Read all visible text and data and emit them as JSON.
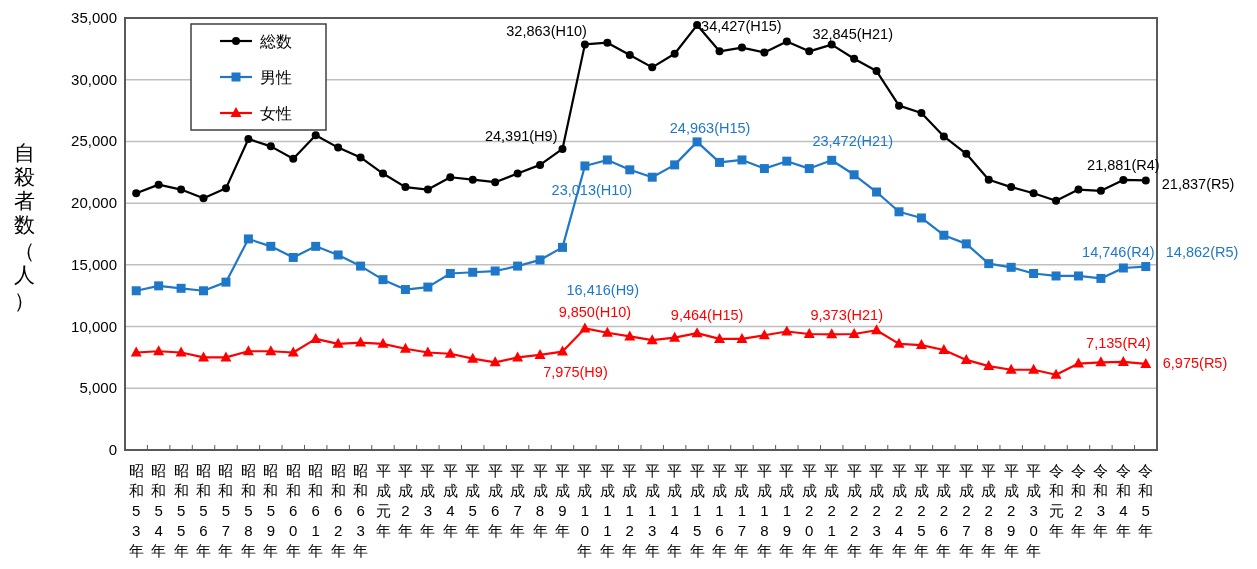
{
  "chart_data": {
    "type": "line",
    "ylabel": "自殺者数（人）",
    "categories": [
      "昭和53年",
      "昭和54年",
      "昭和55年",
      "昭和56年",
      "昭和57年",
      "昭和58年",
      "昭和59年",
      "昭和60年",
      "昭和61年",
      "昭和62年",
      "昭和63年",
      "平成元年",
      "平成2年",
      "平成3年",
      "平成4年",
      "平成5年",
      "平成6年",
      "平成7年",
      "平成8年",
      "平成9年",
      "平成10年",
      "平成11年",
      "平成12年",
      "平成13年",
      "平成14年",
      "平成15年",
      "平成16年",
      "平成17年",
      "平成18年",
      "平成19年",
      "平成20年",
      "平成21年",
      "平成22年",
      "平成23年",
      "平成24年",
      "平成25年",
      "平成26年",
      "平成27年",
      "平成28年",
      "平成29年",
      "平成30年",
      "令和元年",
      "令和2年",
      "令和3年",
      "令和4年",
      "令和5年"
    ],
    "series": [
      {
        "name": "総数",
        "color": "#000000",
        "marker": "circle",
        "values": [
          20800,
          21500,
          21100,
          20400,
          21200,
          25200,
          24600,
          23600,
          25500,
          24500,
          23700,
          22400,
          21300,
          21100,
          22100,
          21900,
          21700,
          22400,
          23100,
          24391,
          32863,
          33000,
          32000,
          31000,
          32100,
          34427,
          32300,
          32600,
          32200,
          33100,
          32300,
          32845,
          31700,
          30700,
          27900,
          27300,
          25400,
          24000,
          21900,
          21300,
          20800,
          20200,
          21100,
          21000,
          21881,
          21837
        ]
      },
      {
        "name": "男性",
        "color": "#1f77c8",
        "marker": "square",
        "values": [
          12900,
          13300,
          13100,
          12900,
          13600,
          17100,
          16500,
          15600,
          16500,
          15800,
          14900,
          13800,
          13000,
          13200,
          14300,
          14400,
          14500,
          14900,
          15400,
          16416,
          23013,
          23500,
          22700,
          22100,
          23100,
          24963,
          23300,
          23500,
          22800,
          23400,
          22800,
          23472,
          22300,
          20900,
          19300,
          18800,
          17400,
          16700,
          15100,
          14800,
          14300,
          14100,
          14100,
          13900,
          14746,
          14862
        ]
      },
      {
        "name": "女性",
        "color": "#ff0000",
        "marker": "triangle",
        "values": [
          7900,
          8000,
          7900,
          7500,
          7500,
          8000,
          8000,
          7900,
          9000,
          8600,
          8700,
          8600,
          8200,
          7900,
          7800,
          7400,
          7100,
          7500,
          7700,
          7975,
          9850,
          9500,
          9200,
          8900,
          9100,
          9464,
          9000,
          9000,
          9300,
          9600,
          9400,
          9373,
          9400,
          9700,
          8600,
          8500,
          8100,
          7300,
          6800,
          6500,
          6500,
          6100,
          7000,
          7100,
          7135,
          6975
        ]
      }
    ],
    "ylim": [
      0,
      35000
    ],
    "yticks": [
      {
        "value": 0,
        "label": "0"
      },
      {
        "value": 5000,
        "label": "5,000"
      },
      {
        "value": 10000,
        "label": "10,000"
      },
      {
        "value": 15000,
        "label": "15,000"
      },
      {
        "value": 20000,
        "label": "20,000"
      },
      {
        "value": 25000,
        "label": "25,000"
      },
      {
        "value": 30000,
        "label": "30,000"
      },
      {
        "value": 35000,
        "label": "35,000"
      }
    ],
    "grid": "y",
    "legend": "top left",
    "annotations": [
      {
        "text": "24,391(H9)",
        "x": "平成9年",
        "y": 24391
      },
      {
        "text": "32,863(H10)",
        "x": "平成10年",
        "y": 32863
      },
      {
        "text": "34,427(H15)",
        "x": "平成15年",
        "y": 34427
      },
      {
        "text": "32,845(H21)",
        "x": "平成21年",
        "y": 32845
      },
      {
        "text": "21,881(R4)",
        "x": "令和4年",
        "y": 21881
      },
      {
        "text": "21,837(R5)",
        "x": "令和5年",
        "y": 21837
      },
      {
        "text": "16,416(H9)",
        "x": "平成9年",
        "y": 16416
      },
      {
        "text": "23,013(H10)",
        "x": "平成10年",
        "y": 23013
      },
      {
        "text": "24,963(H15)",
        "x": "平成15年",
        "y": 24963
      },
      {
        "text": "23,472(H21)",
        "x": "平成21年",
        "y": 23472
      },
      {
        "text": "14,746(R4)",
        "x": "令和4年",
        "y": 14746
      },
      {
        "text": "14,862(R5)",
        "x": "令和5年",
        "y": 14862
      },
      {
        "text": "7,975(H9)",
        "x": "平成9年",
        "y": 7975
      },
      {
        "text": "9,850(H10)",
        "x": "平成10年",
        "y": 9850
      },
      {
        "text": "9,464(H15)",
        "x": "平成15年",
        "y": 9464
      },
      {
        "text": "9,373(H21)",
        "x": "平成21年",
        "y": 9373
      },
      {
        "text": "7,135(R4)",
        "x": "令和4年",
        "y": 7135
      },
      {
        "text": "6,975(R5)",
        "x": "令和5年",
        "y": 6975
      }
    ]
  }
}
